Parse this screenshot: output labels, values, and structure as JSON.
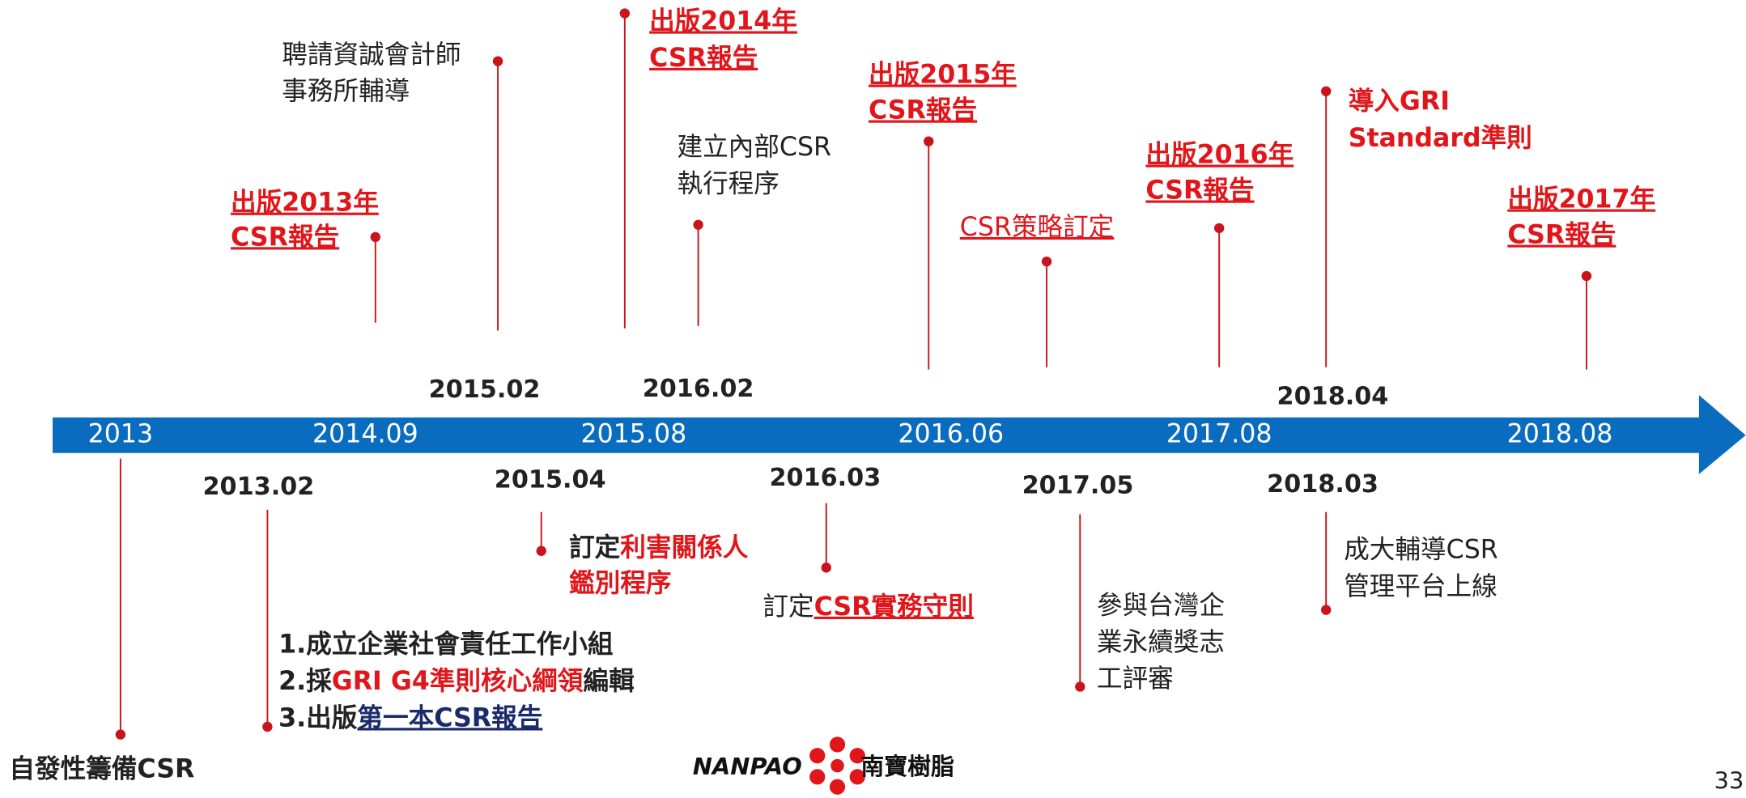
{
  "timeline_labels": [
    "2013",
    "2014.09",
    "2015.08",
    "2016.06",
    "2017.08",
    "2018.08"
  ],
  "dates": [
    "2015.02",
    "2016.02",
    "2018.04",
    "2013.02",
    "2015.04",
    "2016.03",
    "2017.05",
    "2018.03"
  ],
  "events": [
    {
      "lines": [
        [
          {
            "text": "出版2013年",
            "style": "red bold underline"
          }
        ],
        [
          {
            "text": "CSR報告",
            "style": "red bold underline"
          }
        ]
      ]
    },
    {
      "lines": [
        [
          {
            "text": "聘請資誠會計師",
            "style": "plain"
          }
        ],
        [
          {
            "text": "事務所輔導",
            "style": "plain"
          }
        ]
      ]
    },
    {
      "lines": [
        [
          {
            "text": "出版2014年",
            "style": "red bold underline"
          }
        ],
        [
          {
            "text": "CSR報告",
            "style": "red bold underline"
          }
        ]
      ]
    },
    {
      "lines": [
        [
          {
            "text": "建立內部CSR",
            "style": "plain"
          }
        ],
        [
          {
            "text": "執行程序",
            "style": "plain"
          }
        ]
      ]
    },
    {
      "lines": [
        [
          {
            "text": "出版2015年",
            "style": "red bold underline"
          }
        ],
        [
          {
            "text": "CSR報告",
            "style": "red bold underline"
          }
        ]
      ]
    },
    {
      "lines": [
        [
          {
            "text": "CSR策略訂定",
            "style": "red underline"
          }
        ]
      ]
    },
    {
      "lines": [
        [
          {
            "text": "出版2016年",
            "style": "red bold underline"
          }
        ],
        [
          {
            "text": "CSR報告",
            "style": "red bold underline"
          }
        ]
      ]
    },
    {
      "lines": [
        [
          {
            "text": "導入GRI",
            "style": "red bold"
          }
        ],
        [
          {
            "text": "Standard準則",
            "style": "red bold"
          }
        ]
      ]
    },
    {
      "lines": [
        [
          {
            "text": "出版2017年",
            "style": "red bold underline"
          }
        ],
        [
          {
            "text": "CSR報告",
            "style": "red bold underline"
          }
        ]
      ]
    },
    {
      "lines": [
        [
          {
            "text": "自發性籌備CSR",
            "style": "bold"
          }
        ]
      ]
    },
    {
      "lines": [
        [
          {
            "text": "1.成立企業社會責任工作小組",
            "style": "bold"
          }
        ],
        [
          {
            "text": "2.採",
            "style": "bold"
          },
          {
            "text": "GRI G4準則核心綱領",
            "style": "red bold"
          },
          {
            "text": "編輯",
            "style": "bold"
          }
        ],
        [
          {
            "text": "3.出版",
            "style": "bold"
          },
          {
            "text": "第一本CSR報告",
            "style": "navy bold underline"
          }
        ]
      ]
    },
    {
      "lines": [
        [
          {
            "text": "訂定",
            "style": "bold"
          },
          {
            "text": "利害關係人",
            "style": "red bold"
          }
        ],
        [
          {
            "text": "鑑別程序",
            "style": "red bold"
          }
        ]
      ]
    },
    {
      "lines": [
        [
          {
            "text": "訂定",
            "style": "plain"
          },
          {
            "text": "CSR實務守則",
            "style": "red bold underline"
          }
        ]
      ]
    },
    {
      "lines": [
        [
          {
            "text": "參與台灣企",
            "style": "plain"
          }
        ],
        [
          {
            "text": "業永續獎志",
            "style": "plain"
          }
        ],
        [
          {
            "text": "工評審",
            "style": "plain"
          }
        ]
      ]
    },
    {
      "lines": [
        [
          {
            "text": "成大輔導CSR",
            "style": "plain"
          }
        ],
        [
          {
            "text": "管理平台上線",
            "style": "plain"
          }
        ]
      ]
    }
  ],
  "logo": {
    "brand": "NANPAO",
    "name": "南寶樹脂"
  },
  "page_number": "33"
}
